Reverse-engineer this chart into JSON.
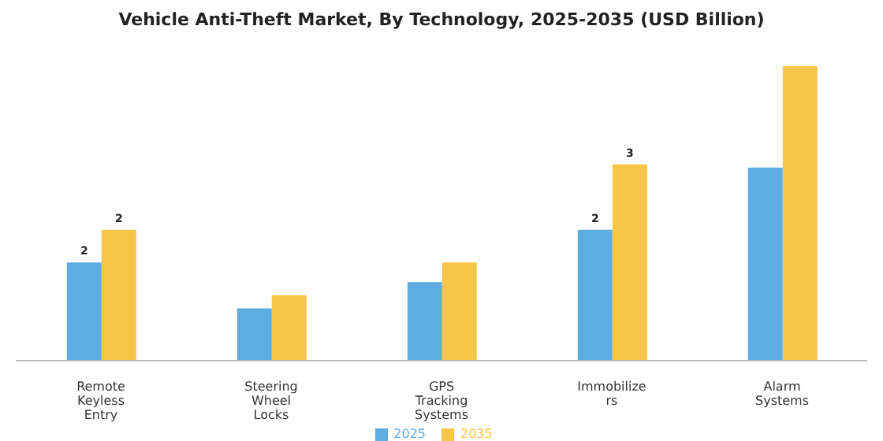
{
  "chart_data": {
    "type": "bar",
    "title": "Vehicle Anti-Theft Market, By Technology, 2025-2035 (USD Billion)",
    "categories": [
      "Remote\nKeyless\nEntry",
      "Steering\nWheel\nLocks",
      "GPS\nTracking\nSystems",
      "Immobilize\nrs",
      "Alarm\nSystems"
    ],
    "series": [
      {
        "name": "2025",
        "color": "#5dade2",
        "values": [
          1.5,
          0.8,
          1.2,
          2.0,
          2.95
        ],
        "value_labels": [
          "2",
          null,
          null,
          "2",
          null
        ]
      },
      {
        "name": "2035",
        "color": "#f7c548",
        "values": [
          2.0,
          1.0,
          1.5,
          3.0,
          4.5
        ],
        "value_labels": [
          "2",
          null,
          null,
          "3",
          null
        ]
      }
    ],
    "legend": "bottom",
    "grid": false
  }
}
